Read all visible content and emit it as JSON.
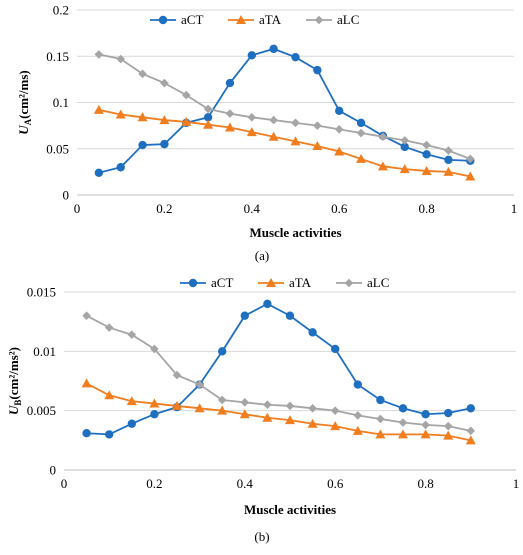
{
  "chart_data": [
    {
      "type": "line",
      "panel_label": "(a)",
      "ylabel_main": "U",
      "ylabel_sub": "A",
      "ylabel_unit": "(cm²/ms)",
      "xlabel": "Muscle activities",
      "xlim": [
        0,
        1
      ],
      "ylim": [
        0,
        0.2
      ],
      "xticks": [
        "0",
        "0.2",
        "0.4",
        "0.6",
        "0.8",
        "1"
      ],
      "yticks": [
        "0",
        "0.05",
        "0.1",
        "0.15",
        "0.2"
      ],
      "grid": "horizontal",
      "legend_position": "top",
      "x": [
        0.05,
        0.1,
        0.15,
        0.2,
        0.25,
        0.3,
        0.35,
        0.4,
        0.45,
        0.5,
        0.55,
        0.6,
        0.65,
        0.7,
        0.75,
        0.8,
        0.85,
        0.9
      ],
      "series": [
        {
          "name": "aCT",
          "color": "#1f6fc0",
          "marker": "circle",
          "values": [
            0.024,
            0.03,
            0.054,
            0.055,
            0.078,
            0.084,
            0.121,
            0.151,
            0.158,
            0.149,
            0.135,
            0.091,
            0.078,
            0.064,
            0.052,
            0.044,
            0.038,
            0.037
          ]
        },
        {
          "name": "aTA",
          "color": "#f07d1e",
          "marker": "triangle",
          "values": [
            0.092,
            0.087,
            0.084,
            0.081,
            0.079,
            0.076,
            0.073,
            0.068,
            0.063,
            0.058,
            0.053,
            0.047,
            0.039,
            0.031,
            0.028,
            0.026,
            0.025,
            0.02
          ]
        },
        {
          "name": "aLC",
          "color": "#a5a5a5",
          "marker": "diamond",
          "values": [
            0.152,
            0.147,
            0.131,
            0.121,
            0.108,
            0.093,
            0.088,
            0.084,
            0.081,
            0.078,
            0.075,
            0.071,
            0.067,
            0.063,
            0.059,
            0.054,
            0.048,
            0.039
          ]
        }
      ]
    },
    {
      "type": "line",
      "panel_label": "(b)",
      "ylabel_main": "U",
      "ylabel_sub": "B",
      "ylabel_unit": "(cm²/ms²)",
      "xlabel": "Muscle activities",
      "xlim": [
        0,
        1
      ],
      "ylim": [
        0,
        0.015
      ],
      "xticks": [
        "0",
        "0.2",
        "0.4",
        "0.6",
        "0.8",
        "1"
      ],
      "yticks": [
        "0",
        "0.005",
        "0.01",
        "0.015"
      ],
      "grid": "horizontal",
      "legend_position": "top",
      "x": [
        0.05,
        0.1,
        0.15,
        0.2,
        0.25,
        0.3,
        0.35,
        0.4,
        0.45,
        0.5,
        0.55,
        0.6,
        0.65,
        0.7,
        0.75,
        0.8,
        0.85,
        0.9
      ],
      "series": [
        {
          "name": "aCT",
          "color": "#1f6fc0",
          "marker": "circle",
          "values": [
            0.0031,
            0.003,
            0.0039,
            0.0047,
            0.0053,
            0.0072,
            0.01,
            0.013,
            0.014,
            0.013,
            0.0116,
            0.0102,
            0.0072,
            0.0059,
            0.0052,
            0.0047,
            0.0048,
            0.0052
          ]
        },
        {
          "name": "aTA",
          "color": "#f07d1e",
          "marker": "triangle",
          "values": [
            0.0073,
            0.0063,
            0.0058,
            0.0056,
            0.0054,
            0.0052,
            0.005,
            0.0047,
            0.0044,
            0.0042,
            0.0039,
            0.0037,
            0.0033,
            0.003,
            0.003,
            0.003,
            0.0029,
            0.0025
          ]
        },
        {
          "name": "aLC",
          "color": "#a5a5a5",
          "marker": "diamond",
          "values": [
            0.013,
            0.012,
            0.0114,
            0.0102,
            0.008,
            0.0072,
            0.0059,
            0.0057,
            0.0055,
            0.0054,
            0.0052,
            0.005,
            0.0046,
            0.0043,
            0.004,
            0.0038,
            0.0037,
            0.0033
          ]
        }
      ]
    }
  ]
}
